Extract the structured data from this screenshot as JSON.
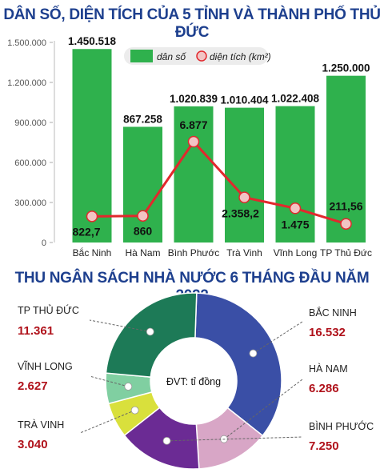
{
  "title_top": "DÂN SỐ, DIỆN TÍCH CỦA 5 TỈNH VÀ THÀNH PHỐ THỦ ĐỨC",
  "title_bottom": "THU NGÂN SÁCH NHÀ NƯỚC 6 THÁNG ĐẦU NĂM 2022",
  "colors": {
    "title": "#1d3f8e",
    "bar": "#2fb14d",
    "line": "#e2282d",
    "marker": "#f2c4c4",
    "value_red": "#b0121b"
  },
  "chart_data": [
    {
      "type": "bar",
      "categories": [
        "Bắc Ninh",
        "Hà Nam",
        "Bình Phước",
        "Trà Vinh",
        "Vĩnh Long",
        "TP Thủ Đức"
      ],
      "series": [
        {
          "name": "dân số",
          "values": [
            1450518,
            867258,
            1020839,
            1010404,
            1022408,
            1250000
          ],
          "labels": [
            "1.450.518",
            "867.258",
            "1.020.839",
            "1.010.404",
            "1.022.408",
            "1.250.000"
          ]
        },
        {
          "name": "diện tích (km²)",
          "chart_type": "line",
          "values": [
            822.7,
            860,
            6877,
            2358.2,
            1475,
            211.56
          ],
          "labels": [
            "822,7",
            "860",
            "6.877",
            "2.358,2",
            "1.475",
            "211,56"
          ]
        }
      ],
      "ylim": [
        0,
        1500000
      ],
      "yticks": [
        "0",
        "300.000",
        "600.000",
        "900.000",
        "1.200.000",
        "1.500.000"
      ],
      "grid": false,
      "legend": "top-center"
    },
    {
      "type": "pie",
      "title": "ĐVT: tỉ đồng",
      "labels": [
        "BẮC NINH",
        "HÀ NAM",
        "BÌNH PHƯỚC",
        "TRÀ VINH",
        "VĨNH LONG",
        "TP THỦ ĐỨC"
      ],
      "values": [
        16.532,
        6.286,
        7.25,
        3.04,
        2.627,
        11.361
      ],
      "value_labels": [
        "16.532",
        "6.286",
        "7.250",
        "3.040",
        "2.627",
        "11.361"
      ],
      "colors": [
        "#3a4fa6",
        "#d8a6c6",
        "#6b2b94",
        "#d9e03c",
        "#80cfa1",
        "#1d7a57"
      ]
    }
  ]
}
